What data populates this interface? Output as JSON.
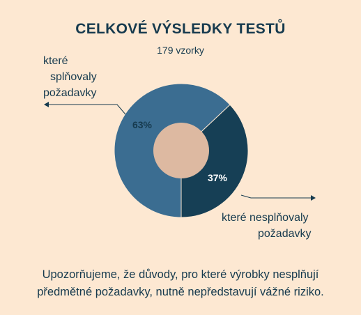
{
  "chart_data": {
    "type": "pie",
    "title": "CELKOVÉ VÝSLEDKY TESTŮ",
    "subtitle": "179 vzorky",
    "slices": [
      {
        "label": [
          "které",
          "splňovaly",
          "požadavky"
        ],
        "value": 63,
        "value_label": "63%",
        "color": "#3b6d91"
      },
      {
        "label": [
          "které nesplňovaly",
          "požadavky"
        ],
        "value": 37,
        "value_label": "37%",
        "color": "#163f55"
      }
    ],
    "center_color": "#ddb9a1"
  },
  "note": {
    "line1": "Upozorňujeme, že důvody, pro které výrobky nesplňují",
    "line2": "předmětné požadavky, nutně nepředstavují vážné riziko."
  }
}
